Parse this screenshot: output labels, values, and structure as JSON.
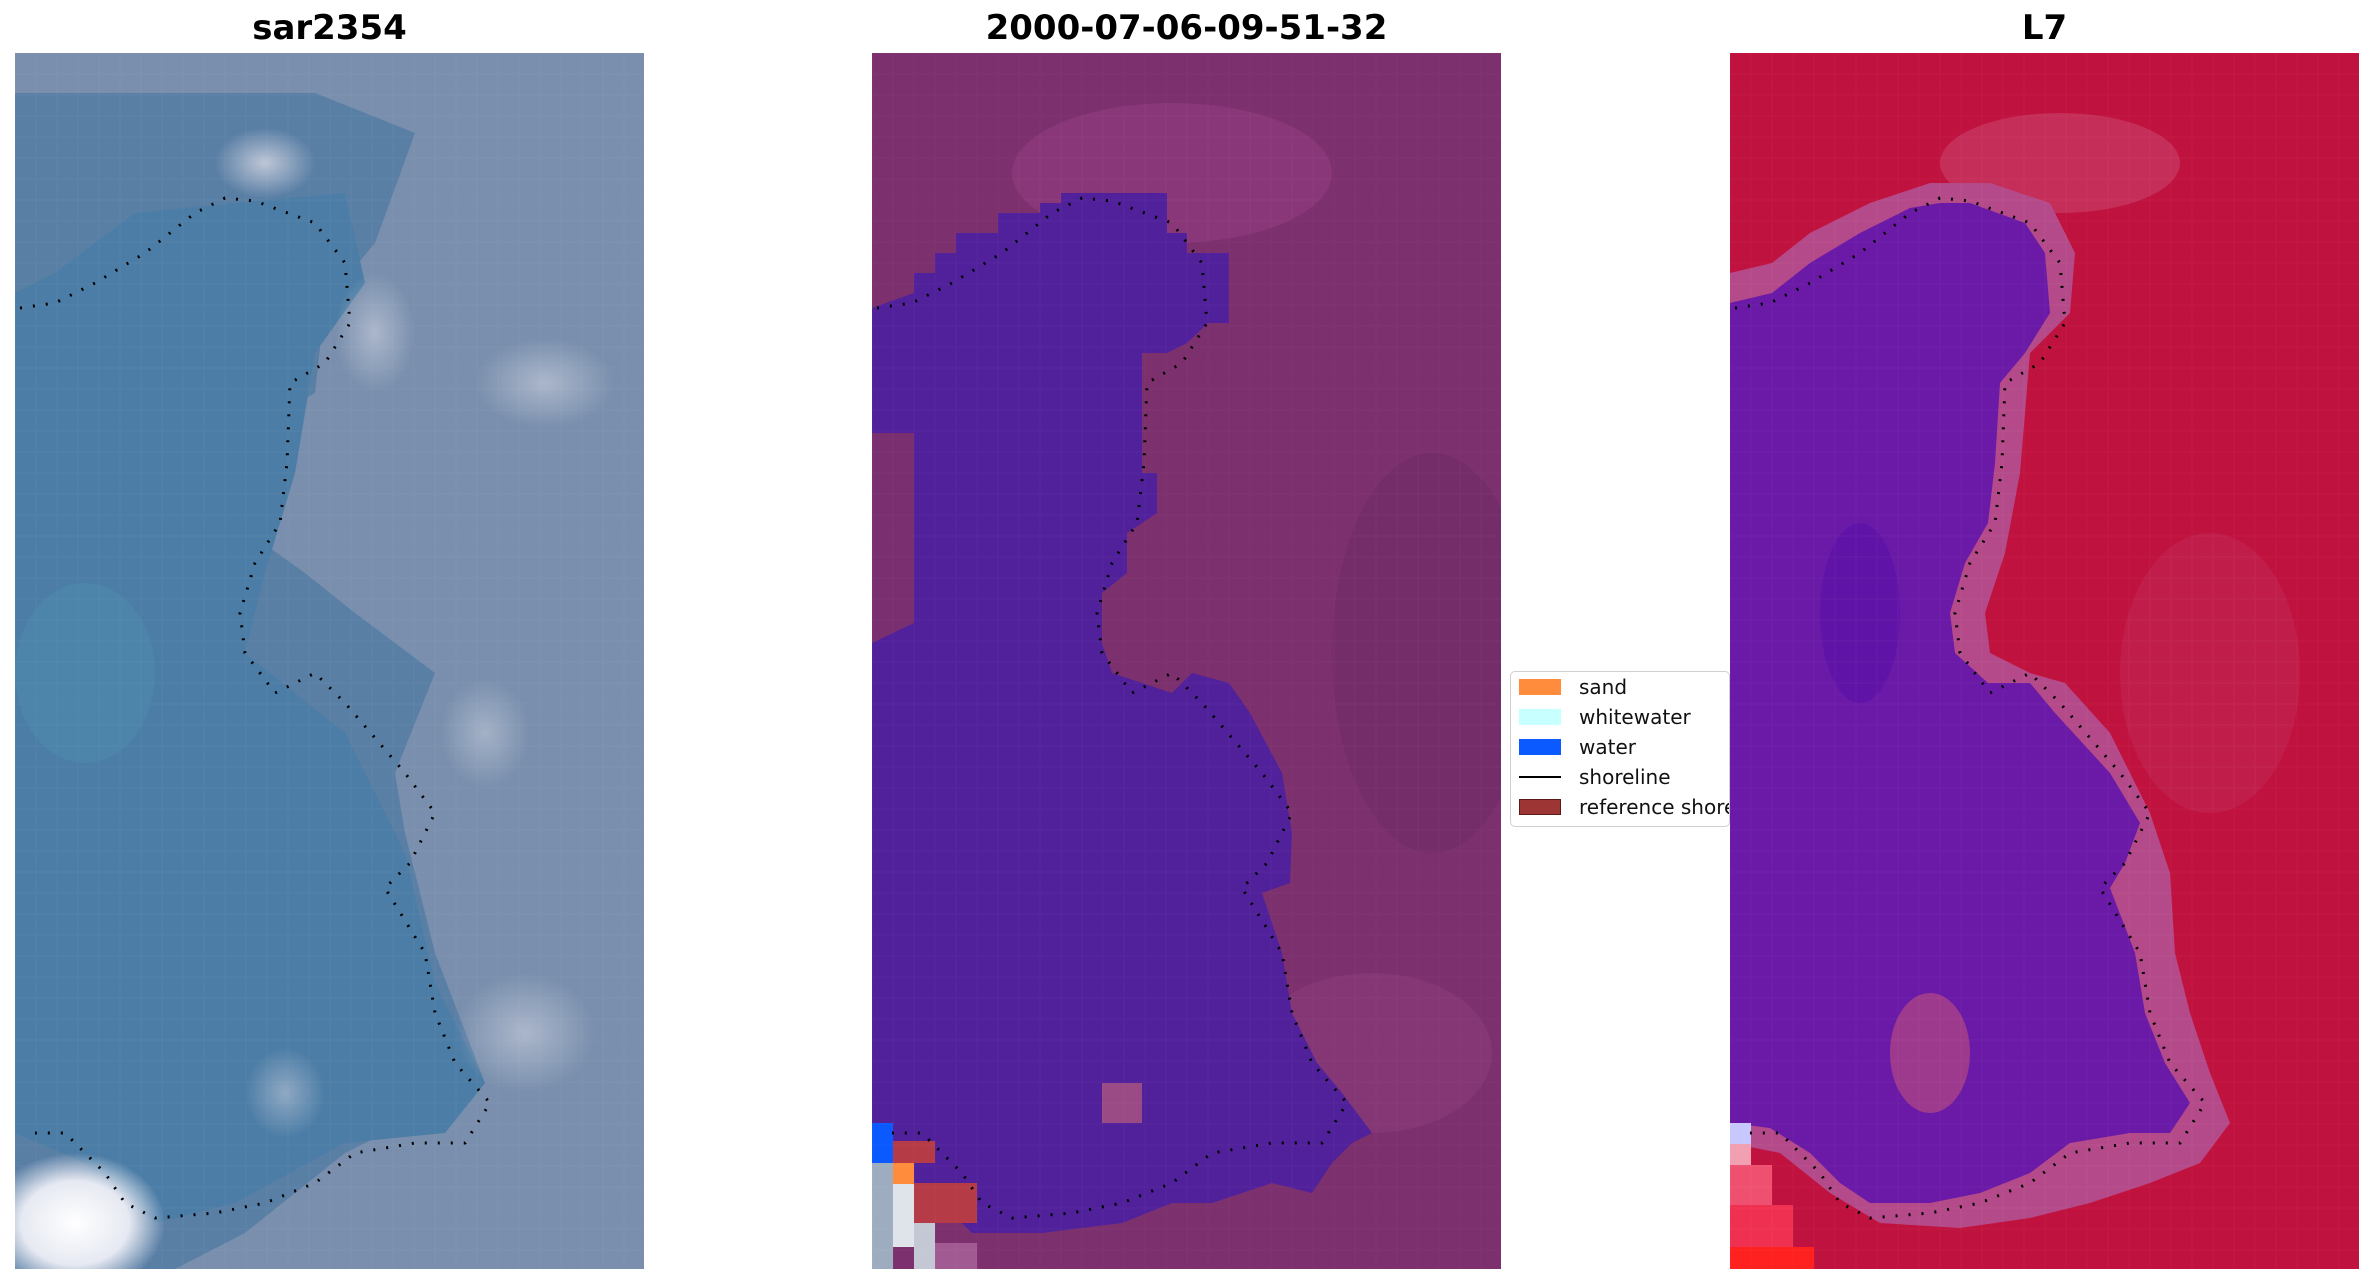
{
  "panels": [
    {
      "title": "sar2354",
      "image": "rgb-image"
    },
    {
      "title": "2000-07-06-09-51-32",
      "image": "classified-image"
    },
    {
      "title": "L7",
      "image": "mndwi-image"
    }
  ],
  "legend": {
    "items": [
      {
        "label": "sand",
        "type": "patch",
        "color": "#ff8c3c"
      },
      {
        "label": "whitewater",
        "type": "patch",
        "color": "#c8ffff"
      },
      {
        "label": "water",
        "type": "patch",
        "color": "#0a5aff"
      },
      {
        "label": "shoreline",
        "type": "line",
        "color": "#000000"
      },
      {
        "label": "reference shoreline",
        "type": "patch",
        "color": "#9e3535"
      }
    ]
  },
  "colors": {
    "rgb_water": "#4f7aa0",
    "rgb_land": "#7d8fab",
    "class_land": "#7c306e",
    "class_water": "#51219b",
    "index_land": "#c0123e",
    "index_water": "#6a1aa6"
  }
}
